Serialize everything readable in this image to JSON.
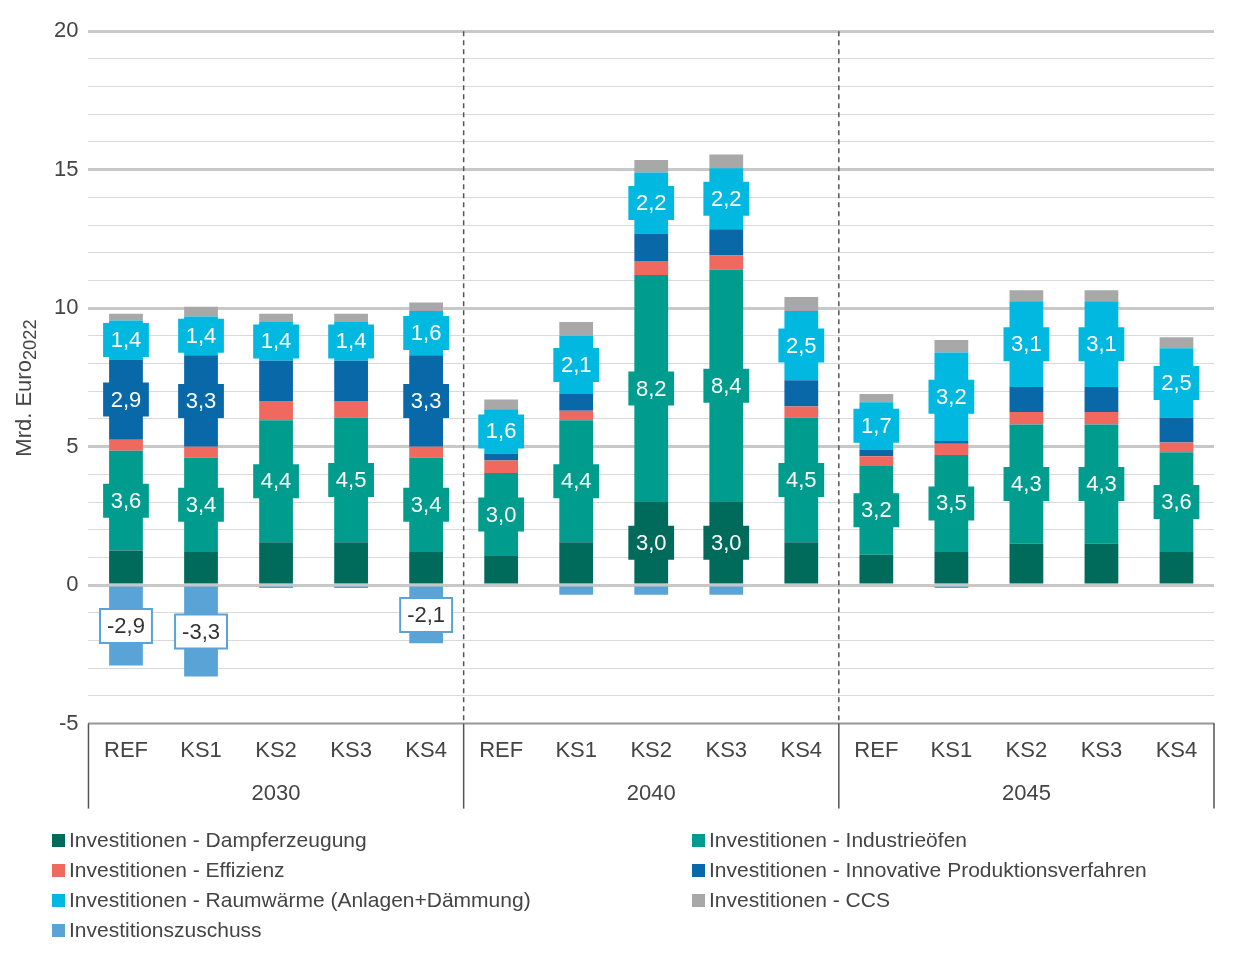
{
  "chart_data": {
    "type": "bar",
    "stacked": true,
    "ylabel": "Mrd. Euro$_{2022}$",
    "categories": [
      "REF",
      "KS1",
      "KS2",
      "KS3",
      "KS4",
      "REF",
      "KS1",
      "KS2",
      "KS3",
      "KS4",
      "REF",
      "KS1",
      "KS2",
      "KS3",
      "KS4"
    ],
    "annotations": [
      "2030",
      "2040",
      "2045"
    ],
    "ylim": [
      -5,
      20
    ],
    "yticks": [
      -5,
      {
        "value": -4,
        "label": null
      },
      {
        "value": -3,
        "label": null
      },
      {
        "value": -2,
        "label": null
      },
      {
        "value": -1,
        "label": null
      },
      0,
      {
        "value": 1,
        "label": null
      },
      {
        "value": 2,
        "label": null
      },
      {
        "value": 3,
        "label": null
      },
      {
        "value": 4,
        "label": null
      },
      5,
      {
        "value": 6,
        "label": null
      },
      {
        "value": 7,
        "label": null
      },
      {
        "value": 8,
        "label": null
      },
      {
        "value": 9,
        "label": null
      },
      10,
      {
        "value": 11,
        "label": null
      },
      {
        "value": 12,
        "label": null
      },
      {
        "value": 13,
        "label": null
      },
      {
        "value": 14,
        "label": null
      },
      15,
      {
        "value": 16,
        "label": null
      },
      {
        "value": 17,
        "label": null
      },
      {
        "value": 18,
        "label": null
      },
      {
        "value": 19,
        "label": null
      },
      20
    ],
    "grid": "y",
    "legend": "bottom",
    "series": [
      {
        "name": "Investitionen - Dampferzeugung",
        "color": "#006a5b",
        "values": [
          1.25,
          1.2,
          1.55,
          1.55,
          1.2,
          1.05,
          1.55,
          3.0,
          3.0,
          1.55,
          1.1,
          1.2,
          1.5,
          1.5,
          1.2
        ],
        "value_labels": [
          null,
          null,
          null,
          null,
          null,
          null,
          null,
          "3,0",
          "3,0",
          null,
          null,
          null,
          null,
          null,
          null
        ]
      },
      {
        "name": "Investitionen - Industrieöfen",
        "color": "#009d8f",
        "values": [
          3.6,
          3.4,
          4.4,
          4.5,
          3.4,
          3.0,
          4.4,
          8.2,
          8.4,
          4.5,
          3.2,
          3.5,
          4.3,
          4.3,
          3.6
        ],
        "value_labels": [
          "3,6",
          "3,4",
          "4,4",
          "4,5",
          "3,4",
          "3,0",
          "4,4",
          "8,2",
          "8,4",
          "4,5",
          "3,2",
          "3,5",
          "4,3",
          "4,3",
          "3,6"
        ]
      },
      {
        "name": "Investitionen - Effizienz",
        "color": "#f0695f",
        "values": [
          0.4,
          0.4,
          0.7,
          0.6,
          0.4,
          0.45,
          0.35,
          0.5,
          0.5,
          0.4,
          0.35,
          0.4,
          0.45,
          0.45,
          0.35
        ]
      },
      {
        "name": "Investitionen - Innovative Produktionsverfahren",
        "color": "#0868a8",
        "values": [
          2.9,
          3.3,
          1.45,
          1.45,
          3.3,
          0.25,
          0.6,
          1.0,
          0.95,
          0.95,
          0.25,
          0.1,
          0.9,
          0.9,
          0.9
        ],
        "value_labels": [
          "2,9",
          "3,3",
          null,
          null,
          "3,3",
          null,
          null,
          null,
          null,
          null,
          null,
          null,
          null,
          null,
          null
        ]
      },
      {
        "name": "Investitionen - Raumwärme (Anlagen+Dämmung)",
        "color": "#00b8e0",
        "values": [
          1.4,
          1.4,
          1.4,
          1.4,
          1.6,
          1.6,
          2.1,
          2.2,
          2.2,
          2.5,
          1.7,
          3.2,
          3.1,
          3.1,
          2.5
        ],
        "value_labels": [
          "1,4",
          "1,4",
          "1,4",
          "1,4",
          "1,6",
          "1,6",
          "2,1",
          "2,2",
          "2,2",
          "2,5",
          "1,7",
          "3,2",
          "3,1",
          "3,1",
          "2,5"
        ]
      },
      {
        "name": "Investitionen - CCS",
        "color": "#a8a8a8",
        "values": [
          0.25,
          0.35,
          0.3,
          0.3,
          0.3,
          0.35,
          0.5,
          0.45,
          0.5,
          0.5,
          0.3,
          0.45,
          0.4,
          0.4,
          0.4
        ]
      },
      {
        "name": "Investitionszuschuss",
        "color": "#5aa3d6",
        "values": [
          -2.9,
          -3.3,
          -0.1,
          -0.1,
          -2.1,
          0,
          -0.35,
          -0.35,
          -0.35,
          0,
          0,
          -0.1,
          0,
          0,
          0
        ],
        "value_labels": [
          "-2,9",
          "-3,3",
          null,
          null,
          "-2,1",
          null,
          null,
          null,
          null,
          null,
          null,
          null,
          null,
          null,
          null
        ]
      }
    ]
  }
}
